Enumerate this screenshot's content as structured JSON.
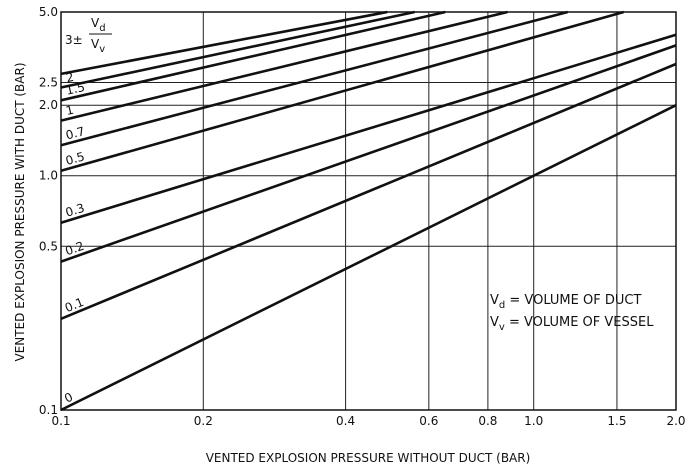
{
  "chart_data": {
    "type": "line",
    "xlabel": "VENTED EXPLOSION PRESSURE WITHOUT DUCT (BAR)",
    "ylabel": "VENTED EXPLOSION PRESSURE WITH DUCT (BAR)",
    "x_scale": "log",
    "y_scale": "log",
    "xlim": [
      0.1,
      2.0
    ],
    "ylim": [
      0.1,
      5.0
    ],
    "grid": true,
    "x_ticks": [
      {
        "value": 0.1,
        "label": "0.1"
      },
      {
        "value": 0.2,
        "label": "0.2"
      },
      {
        "value": 0.4,
        "label": "0.4"
      },
      {
        "value": 0.6,
        "label": "0.6"
      },
      {
        "value": 0.8,
        "label": "0.8"
      },
      {
        "value": 1.0,
        "label": "1.0"
      },
      {
        "value": 1.5,
        "label": "1.5"
      },
      {
        "value": 2.0,
        "label": "2.0"
      }
    ],
    "y_ticks": [
      {
        "value": 0.1,
        "label": "0.1"
      },
      {
        "value": 0.5,
        "label": "0.5"
      },
      {
        "value": 1.0,
        "label": "1.0"
      },
      {
        "value": 2.0,
        "label": "2.0"
      },
      {
        "value": 2.5,
        "label": "2.5"
      },
      {
        "value": 5.0,
        "label": "5.0"
      }
    ],
    "series": [
      {
        "name": "0",
        "x": [
          0.1,
          2.0
        ],
        "y": [
          0.1,
          2.0
        ]
      },
      {
        "name": "0.1",
        "x": [
          0.1,
          2.0
        ],
        "y": [
          0.245,
          3.0
        ]
      },
      {
        "name": "0.2",
        "x": [
          0.1,
          2.0
        ],
        "y": [
          0.43,
          3.6
        ]
      },
      {
        "name": "0.3",
        "x": [
          0.1,
          2.0
        ],
        "y": [
          0.63,
          4.0
        ]
      },
      {
        "name": "0.5",
        "x": [
          0.1,
          1.55
        ],
        "y": [
          1.05,
          5.0
        ]
      },
      {
        "name": "0.7",
        "x": [
          0.1,
          1.18
        ],
        "y": [
          1.35,
          5.0
        ]
      },
      {
        "name": "1",
        "x": [
          0.1,
          0.88
        ],
        "y": [
          1.72,
          5.0
        ]
      },
      {
        "name": "1.5",
        "x": [
          0.1,
          0.65
        ],
        "y": [
          2.1,
          5.0
        ]
      },
      {
        "name": "2",
        "x": [
          0.1,
          0.56
        ],
        "y": [
          2.38,
          5.0
        ]
      },
      {
        "name": "3",
        "x": [
          0.1,
          0.49
        ],
        "y": [
          2.72,
          5.0
        ]
      }
    ],
    "curve_label_lead": "3±",
    "curve_label_fraction": {
      "num": "V",
      "num_sub": "d",
      "den": "V",
      "den_sub": "v"
    },
    "legend": [
      {
        "symbol": "V",
        "sub": "d",
        "text": " = VOLUME OF DUCT"
      },
      {
        "symbol": "V",
        "sub": "v",
        "text": " = VOLUME OF VESSEL"
      }
    ]
  }
}
